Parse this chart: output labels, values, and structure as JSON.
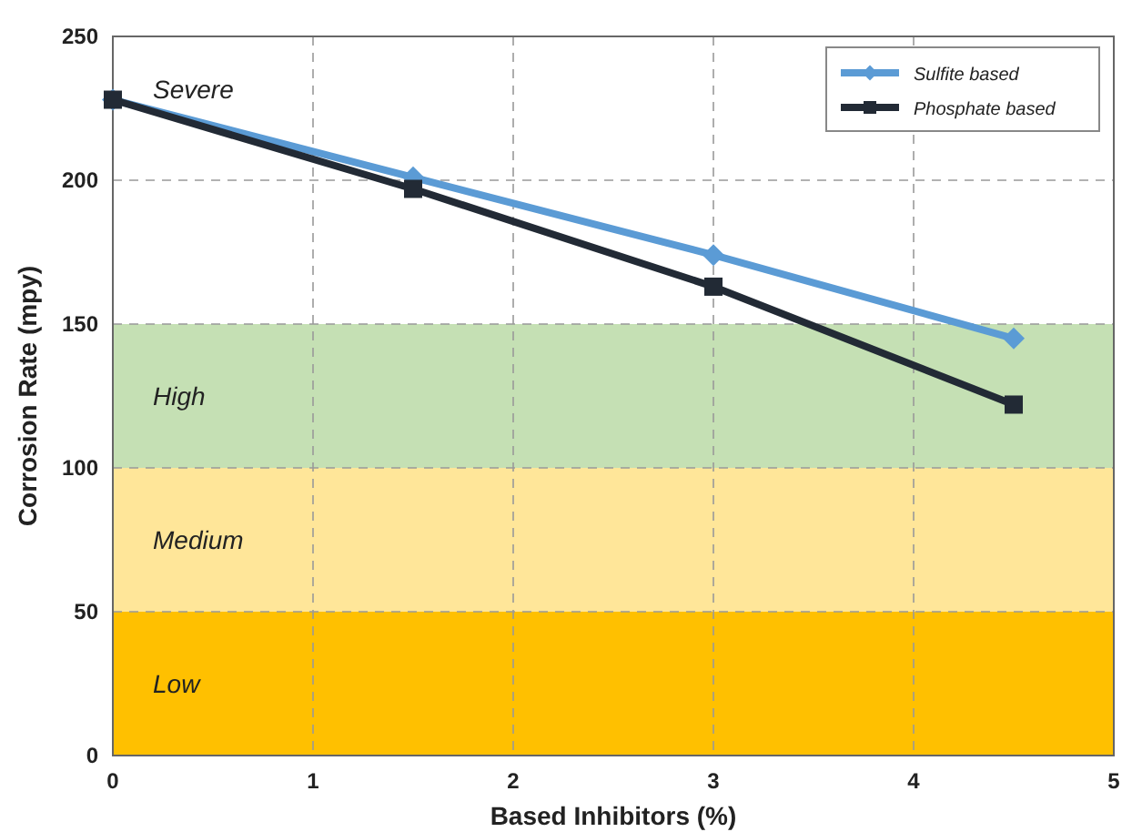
{
  "chart_data": {
    "type": "line",
    "xlabel": "Based Inhibitors (%)",
    "ylabel": "Corrosion Rate (mpy)",
    "xlim": [
      0,
      5
    ],
    "xticks": [
      0,
      1,
      2,
      3,
      4,
      5
    ],
    "ylim": [
      0,
      250
    ],
    "yticks": [
      0,
      50,
      100,
      150,
      200,
      250
    ],
    "grid": true,
    "legend": "top right",
    "bands": [
      {
        "axis": "y",
        "from": 0,
        "to": 50,
        "label": "Low",
        "color": "#ffc000"
      },
      {
        "axis": "y",
        "from": 50,
        "to": 100,
        "label": "Medium",
        "color": "#ffe699"
      },
      {
        "axis": "y",
        "from": 100,
        "to": 150,
        "label": "High",
        "color": "#c5e0b4"
      }
    ],
    "annotations": [
      "Severe"
    ],
    "series": [
      {
        "name": "Sulfite based",
        "color": "#5b9bd5",
        "marker": "diamond",
        "x": [
          0,
          1.5,
          3,
          4.5
        ],
        "values": [
          228,
          201,
          174,
          145
        ]
      },
      {
        "name": "Phosphate based",
        "color": "#222a35",
        "marker": "square",
        "x": [
          0,
          1.5,
          3,
          4.5
        ],
        "values": [
          228,
          197,
          163,
          122
        ]
      }
    ]
  }
}
